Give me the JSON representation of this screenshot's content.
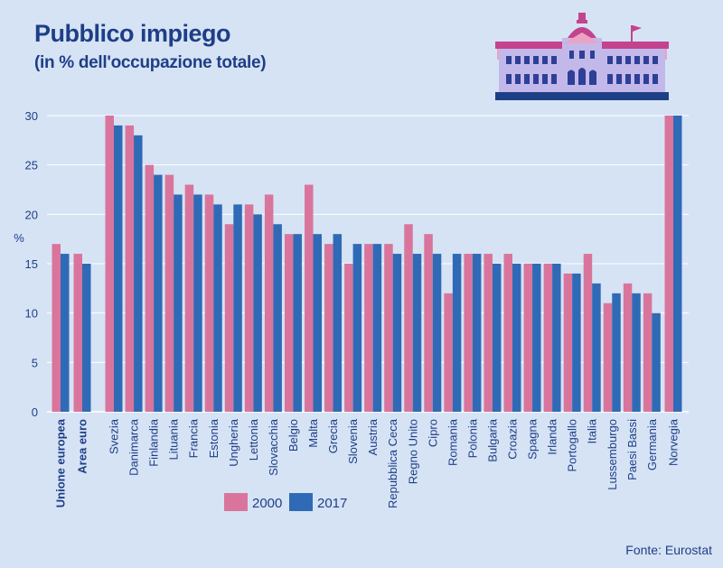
{
  "title": "Pubblico impiego",
  "subtitle": "(in % dell'occupazione totale)",
  "source": "Fonte: Eurostat",
  "chart_data": {
    "type": "bar",
    "ylabel": "%",
    "ylim": [
      0,
      30
    ],
    "yticks": [
      0,
      5,
      10,
      15,
      20,
      25,
      30
    ],
    "grid": true,
    "legend_position": "bottom-center",
    "categories": [
      "Unione europea",
      "Area euro",
      "Svezia",
      "Danimarca",
      "Finlandia",
      "Lituania",
      "Francia",
      "Estonia",
      "Ungheria",
      "Lettonia",
      "Slovacchia",
      "Belgio",
      "Malta",
      "Grecia",
      "Slovenia",
      "Austria",
      "Repubblica Ceca",
      "Regno Unito",
      "Cipro",
      "Romania",
      "Polonia",
      "Bulgaria",
      "Croazia",
      "Spagna",
      "Irlanda",
      "Portogallo",
      "Italia",
      "Lussemburgo",
      "Paesi Bassi",
      "Germania",
      "Norvegia"
    ],
    "bold_categories": [
      "Unione europea",
      "Area euro"
    ],
    "series": [
      {
        "name": "2000",
        "color": "#d9759c",
        "values": [
          17,
          16,
          30,
          29,
          25,
          24,
          23,
          22,
          19,
          21,
          22,
          18,
          23,
          17,
          15,
          17,
          17,
          19,
          18,
          12,
          16,
          16,
          16,
          15,
          15,
          14,
          16,
          11,
          13,
          12,
          30
        ]
      },
      {
        "name": "2017",
        "color": "#2f6ab6",
        "values": [
          16,
          15,
          29,
          28,
          24,
          22,
          22,
          21,
          21,
          20,
          19,
          18,
          18,
          18,
          17,
          17,
          16,
          16,
          16,
          16,
          16,
          15,
          15,
          15,
          15,
          14,
          13,
          12,
          12,
          10,
          30
        ]
      }
    ]
  },
  "colors": {
    "background": "#d6e3f5",
    "text": "#1e3f86",
    "grid": "#ffffff",
    "series_2000": "#d9759c",
    "series_2017": "#2f6ab6"
  },
  "building_icon": "parliament-building-icon"
}
